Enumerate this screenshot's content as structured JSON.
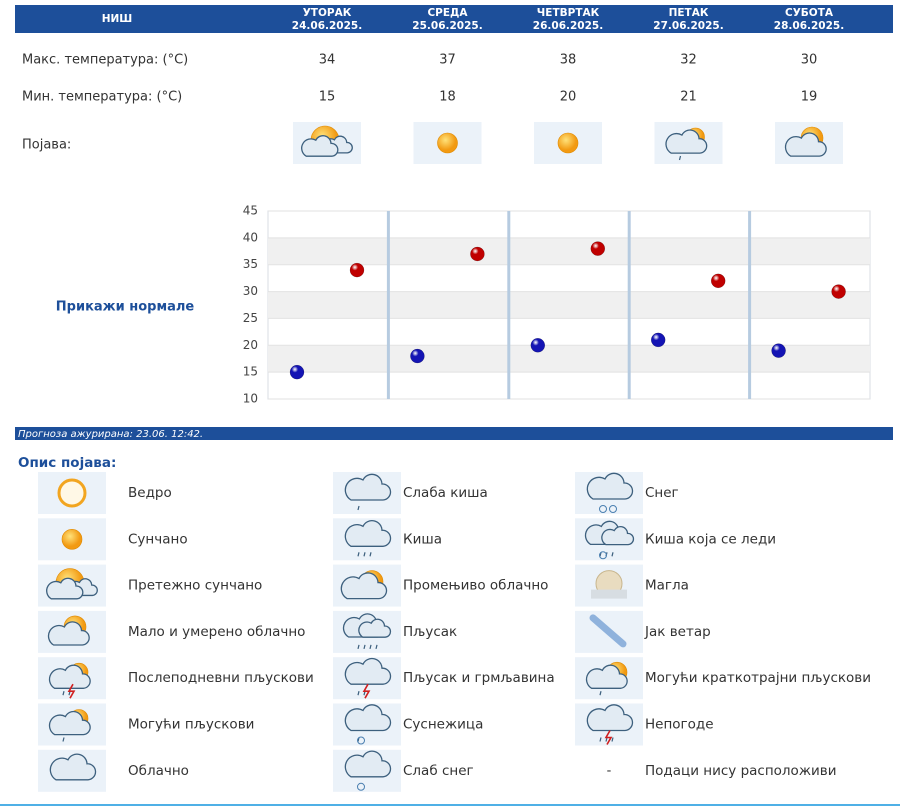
{
  "header": {
    "city": "НИШ"
  },
  "table": {
    "phenomenon_label": "Појава:"
  },
  "chart_data": {
    "type": "scatter",
    "categories": [
      "УТОРАК",
      "СРЕДА",
      "ЧЕТВРТАК",
      "ПЕТАК",
      "СУБОТА"
    ],
    "dates": [
      "24.06.2025.",
      "25.06.2025.",
      "26.06.2025.",
      "27.06.2025.",
      "28.06.2025."
    ],
    "series": [
      {
        "name": "Макс. температура: (°C)",
        "color": "#c00000",
        "values": [
          34,
          37,
          38,
          32,
          30
        ]
      },
      {
        "name": "Мин. температура: (°C)",
        "color": "#1414b4",
        "values": [
          15,
          18,
          20,
          21,
          19
        ]
      }
    ],
    "ylim": [
      10,
      45
    ],
    "yticks": [
      10,
      15,
      20,
      25,
      30,
      35,
      40,
      45
    ]
  },
  "normals_link": "Прикажи нормале",
  "updated": "Прогноза ажурирана:  23.06.  12:42.",
  "legend": {
    "title": "Опис појава:",
    "items": [
      {
        "label": "Ведро"
      },
      {
        "label": "Сунчано"
      },
      {
        "label": "Претежно сунчано"
      },
      {
        "label": "Мало и умерено облачно"
      },
      {
        "label": "Послеподневни пљускови"
      },
      {
        "label": "Могући пљускови"
      },
      {
        "label": "Облачно"
      },
      {
        "label": "Слаба киша"
      },
      {
        "label": "Киша"
      },
      {
        "label": "Промењиво облачно"
      },
      {
        "label": "Пљусак"
      },
      {
        "label": "Пљусак и грмљавина"
      },
      {
        "label": "Суснежица"
      },
      {
        "label": "Слаб снег"
      },
      {
        "label": "Снег"
      },
      {
        "label": "Киша која се леди"
      },
      {
        "label": "Магла"
      },
      {
        "label": "Јак ветар"
      },
      {
        "label": "Могући краткотрајни пљускови"
      },
      {
        "label": "Непогоде"
      },
      {
        "symbol": "-",
        "label": "Подаци нису расположиви"
      }
    ]
  }
}
